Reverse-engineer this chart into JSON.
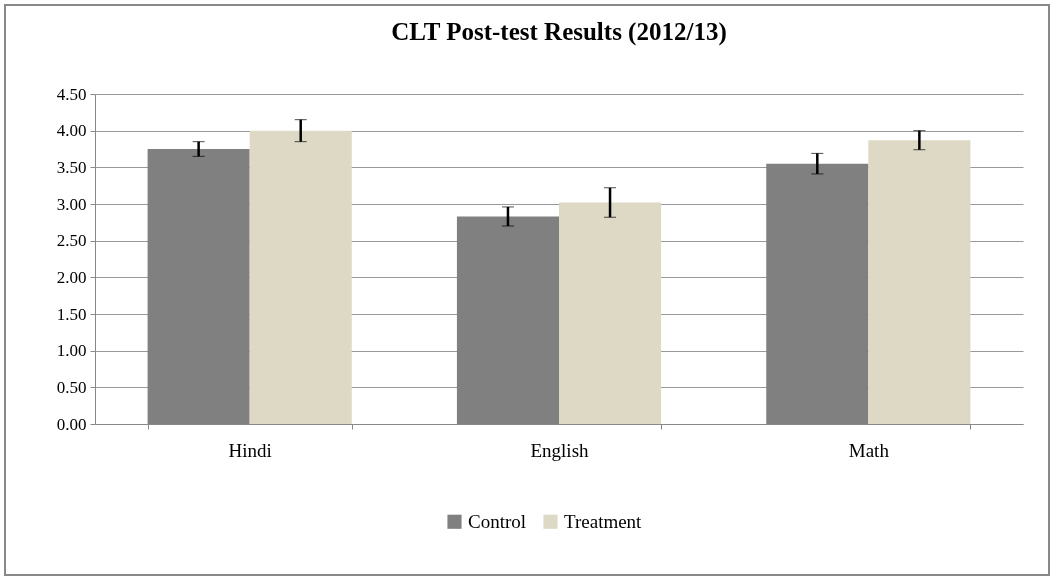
{
  "chart_data": {
    "type": "bar",
    "title": "CLT Post-test Results (2012/13)",
    "categories": [
      "Hindi",
      "English",
      "Math"
    ],
    "series": [
      {
        "name": "Control",
        "color": "#808080",
        "values": [
          3.75,
          2.83,
          3.55
        ],
        "errors": [
          0.1,
          0.13,
          0.14
        ]
      },
      {
        "name": "Treatment",
        "color": "#ddd9c4",
        "values": [
          4.0,
          3.02,
          3.87
        ],
        "errors": [
          0.15,
          0.2,
          0.13
        ]
      }
    ],
    "ylim": [
      0,
      4.5
    ],
    "yticks": [
      {
        "value": 0,
        "label": "0.00"
      },
      {
        "value": 0.5,
        "label": "0.50"
      },
      {
        "value": 1,
        "label": "1.00"
      },
      {
        "value": 1.5,
        "label": "1.50"
      },
      {
        "value": 2,
        "label": "2.00"
      },
      {
        "value": 2.5,
        "label": "2.50"
      },
      {
        "value": 3,
        "label": "3.00"
      },
      {
        "value": 3.5,
        "label": "3.50"
      },
      {
        "value": 4,
        "label": "4.00"
      },
      {
        "value": 4.5,
        "label": "4.50"
      }
    ],
    "grid": "y",
    "legend": "bottom"
  }
}
